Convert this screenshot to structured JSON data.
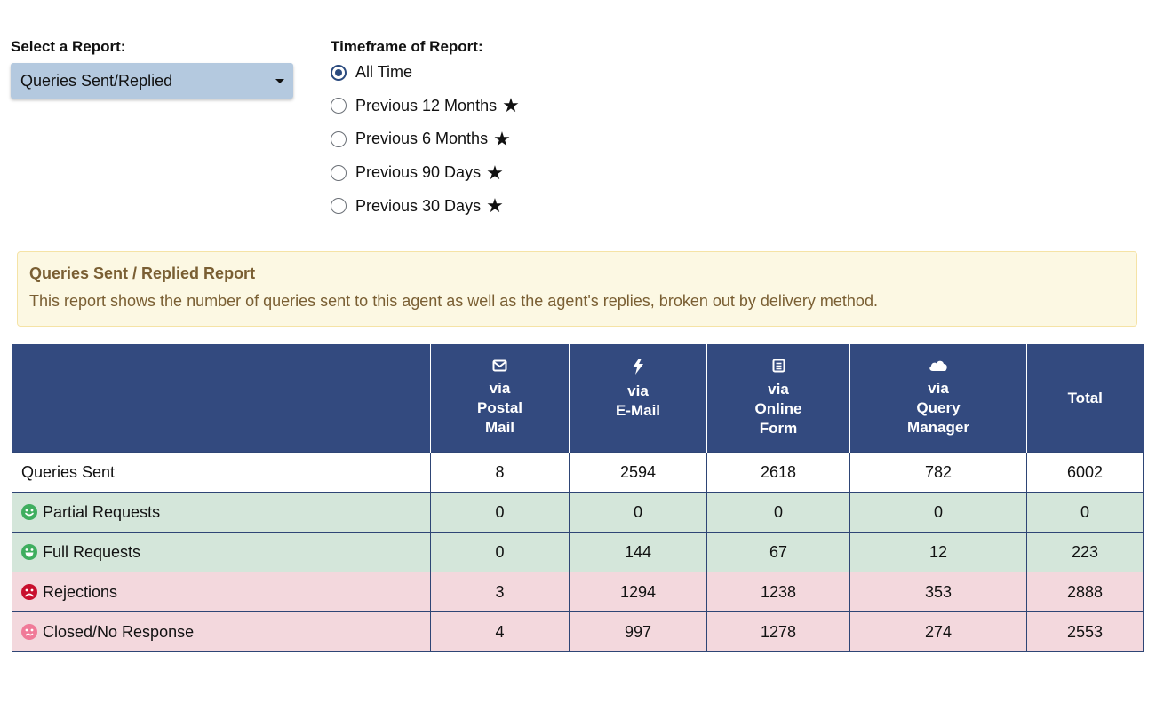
{
  "report_select": {
    "label": "Select a Report:",
    "selected": "Queries Sent/Replied"
  },
  "timeframe": {
    "label": "Timeframe of Report:",
    "options": [
      {
        "label": "All Time",
        "checked": true
      },
      {
        "label": "Previous 12 Months",
        "checked": false
      },
      {
        "label": "Previous 6 Months",
        "checked": false
      },
      {
        "label": "Previous 90 Days",
        "checked": false
      },
      {
        "label": "Previous 30 Days",
        "checked": false
      }
    ],
    "premium_marker": "★"
  },
  "info": {
    "title": "Queries Sent / Replied Report",
    "text": "This report shows the number of queries sent to this agent as well as the agent's replies, broken out by delivery method."
  },
  "table": {
    "columns": [
      {
        "icon": "envelope-icon",
        "line1": "via",
        "line2": "Postal",
        "line3": "Mail"
      },
      {
        "icon": "lightning-icon",
        "line1": "via",
        "line2": "E-Mail",
        "line3": ""
      },
      {
        "icon": "form-icon",
        "line1": "via",
        "line2": "Online",
        "line3": "Form"
      },
      {
        "icon": "cloud-icon",
        "line1": "via",
        "line2": "Query",
        "line3": "Manager"
      },
      {
        "icon": "",
        "line1": "Total",
        "line2": "",
        "line3": ""
      }
    ],
    "rows": [
      {
        "label": "Queries Sent",
        "icon": "",
        "values": [
          "8",
          "2594",
          "2618",
          "782",
          "6002"
        ]
      },
      {
        "label": "Partial Requests",
        "icon": "smile-icon",
        "values": [
          "0",
          "0",
          "0",
          "0",
          "0"
        ]
      },
      {
        "label": "Full Requests",
        "icon": "grin-icon",
        "values": [
          "0",
          "144",
          "67",
          "12",
          "223"
        ]
      },
      {
        "label": "Rejections",
        "icon": "frown-icon",
        "values": [
          "3",
          "1294",
          "1238",
          "353",
          "2888"
        ]
      },
      {
        "label": "Closed/No Response",
        "icon": "meh-icon",
        "values": [
          "4",
          "997",
          "1278",
          "274",
          "2553"
        ]
      }
    ]
  },
  "colors": {
    "header_bg": "#334a7f",
    "positive_row": "#d4e6da",
    "negative_row": "#f3d8dd",
    "smile_green": "#3fae5f",
    "frown_red": "#c8102e",
    "meh_pink": "#f07a98"
  }
}
